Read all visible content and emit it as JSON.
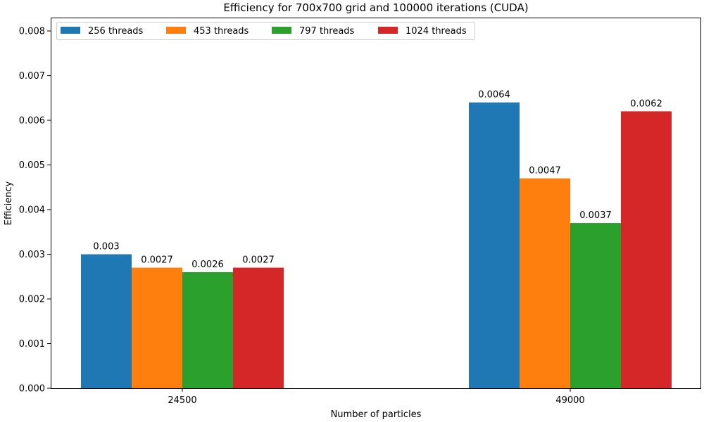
{
  "chart_data": {
    "type": "bar",
    "title": "Efficiency for 700x700 grid and 100000 iterations (CUDA)",
    "xlabel": "Number of particles",
    "ylabel": "Efficiency",
    "categories": [
      "24500",
      "49000"
    ],
    "series": [
      {
        "name": "256 threads",
        "color": "#1f77b4",
        "values": [
          0.003,
          0.0064
        ],
        "labels": [
          "0.003",
          "0.0064"
        ]
      },
      {
        "name": "453 threads",
        "color": "#ff7f0e",
        "values": [
          0.0027,
          0.0047
        ],
        "labels": [
          "0.0027",
          "0.0047"
        ]
      },
      {
        "name": "797 threads",
        "color": "#2ca02c",
        "values": [
          0.0026,
          0.0037
        ],
        "labels": [
          "0.0026",
          "0.0037"
        ]
      },
      {
        "name": "1024 threads",
        "color": "#d62728",
        "values": [
          0.0027,
          0.0062
        ],
        "labels": [
          "0.0027",
          "0.0062"
        ]
      }
    ],
    "ylim": [
      0,
      0.0083
    ],
    "yticks": [
      "0.000",
      "0.001",
      "0.002",
      "0.003",
      "0.004",
      "0.005",
      "0.006",
      "0.007",
      "0.008"
    ],
    "grid": false,
    "legend_position": "top-left"
  }
}
